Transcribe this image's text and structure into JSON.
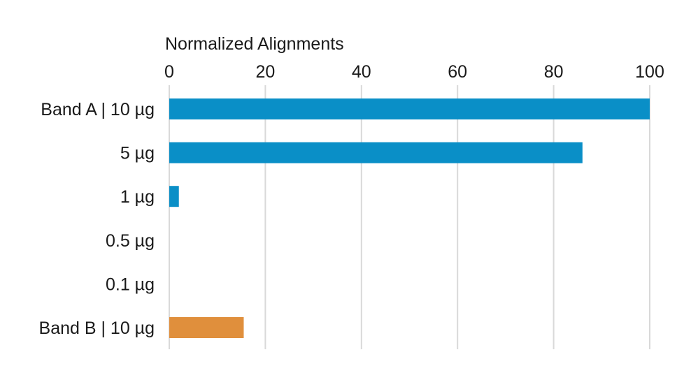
{
  "chart_data": {
    "type": "bar",
    "orientation": "horizontal",
    "xlabel": "Normalized Alignments",
    "ylabel": "",
    "xlim": [
      0,
      100
    ],
    "x_ticks": [
      0,
      20,
      40,
      60,
      80,
      100
    ],
    "x_axis_position": "top",
    "grid": true,
    "categories": [
      "Band A | 10 µg",
      "5 µg",
      "1 µg",
      "0.5 µg",
      "0.1 µg",
      "Band B | 10 µg"
    ],
    "values": [
      100,
      86,
      2,
      0,
      0,
      15.5
    ],
    "bar_colors": [
      "#0a8fc7",
      "#0a8fc7",
      "#0a8fc7",
      "#0a8fc7",
      "#0a8fc7",
      "#e08f3c"
    ]
  }
}
